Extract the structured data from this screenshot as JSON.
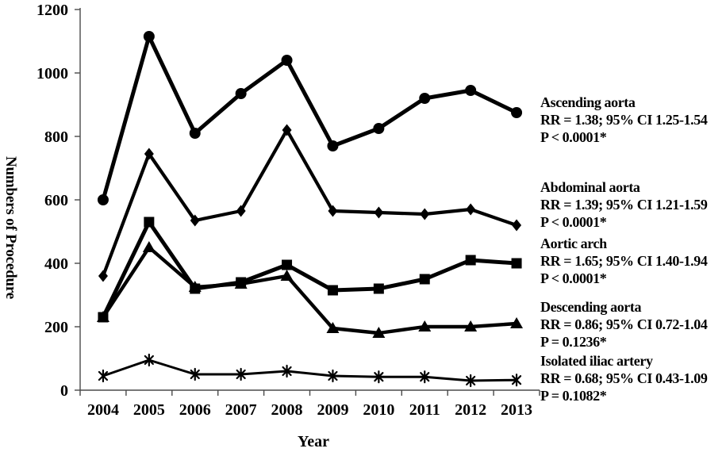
{
  "figure": {
    "background": "#ffffff",
    "ink_color": "#000000",
    "axis_color": "#4a4a4a"
  },
  "chart_data": {
    "type": "line",
    "title": "",
    "xlabel": "Year",
    "ylabel": "Numbers of Procedure",
    "x_categories": [
      "2004",
      "2005",
      "2006",
      "2007",
      "2008",
      "2009",
      "2010",
      "2011",
      "2012",
      "2013"
    ],
    "ylim": [
      0,
      1200
    ],
    "yticks": [
      0,
      200,
      400,
      600,
      800,
      1000,
      1200
    ],
    "grid": false,
    "legend_position": "right-side-annotations",
    "line_color": "#000000",
    "series": [
      {
        "name": "Ascending aorta",
        "marker": "circle-icon",
        "values": [
          600,
          1115,
          810,
          935,
          1040,
          770,
          825,
          920,
          945,
          875
        ],
        "annotation": {
          "title": "Ascending aorta",
          "rr": "RR = 1.38; 95% CI 1.25-1.54",
          "p": "P < 0.0001*"
        }
      },
      {
        "name": "Abdominal aorta",
        "marker": "diamond-icon",
        "values": [
          360,
          745,
          535,
          565,
          820,
          565,
          560,
          555,
          570,
          520
        ],
        "annotation": {
          "title": "Abdominal aorta",
          "rr": "RR = 1.39; 95% CI 1.21-1.59",
          "p": "P < 0.0001*"
        }
      },
      {
        "name": "Aortic arch",
        "marker": "square-icon",
        "values": [
          230,
          530,
          320,
          340,
          395,
          315,
          320,
          350,
          410,
          400
        ],
        "annotation": {
          "title": "Aortic arch",
          "rr": "RR = 1.65; 95% CI 1.40-1.94",
          "p": "P < 0.0001*"
        }
      },
      {
        "name": "Descending aorta",
        "marker": "triangle-icon",
        "values": [
          230,
          450,
          325,
          335,
          360,
          195,
          180,
          200,
          200,
          210
        ],
        "annotation": {
          "title": "Descending aorta",
          "rr": "RR = 0.86; 95% CI 0.72-1.04",
          "p": "P = 0.1236*"
        }
      },
      {
        "name": "Isolated iliac artery",
        "marker": "asterisk-icon",
        "values": [
          45,
          95,
          50,
          50,
          60,
          45,
          42,
          42,
          30,
          32
        ],
        "annotation": {
          "title": "Isolated iliac artery",
          "rr": "RR = 0.68; 95% CI 0.43-1.09",
          "p": "P = 0.1082*"
        }
      }
    ]
  }
}
